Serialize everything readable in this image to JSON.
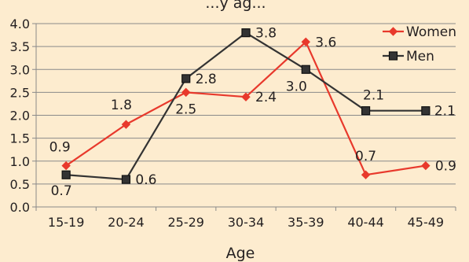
{
  "chart_data": {
    "type": "line",
    "title": "...y ag...",
    "xlabel": "Age",
    "ylabel": "",
    "categories": [
      "15-19",
      "20-24",
      "25-29",
      "30-34",
      "35-39",
      "40-44",
      "45-49"
    ],
    "ylim": [
      0,
      4
    ],
    "yticks": [
      "0.0",
      "0.5",
      "1.0",
      "1.5",
      "2.0",
      "2.5",
      "3.0",
      "3.5",
      "4.0"
    ],
    "grid": true,
    "legend_position": "top-right",
    "series": [
      {
        "name": "Women",
        "color": "#e8392c",
        "marker": "diamond",
        "values": [
          0.9,
          1.8,
          2.5,
          2.4,
          3.6,
          0.7,
          0.9
        ],
        "labels": [
          "0.9",
          "1.8",
          "2.5",
          "2.4",
          "3.6",
          "0.7",
          "0.9"
        ]
      },
      {
        "name": "Men",
        "color": "#333333",
        "marker": "square",
        "values": [
          0.7,
          0.6,
          2.8,
          3.8,
          3.0,
          2.1,
          2.1
        ],
        "labels": [
          "0.7",
          "0.6",
          "2.8",
          "3.8",
          "3.0",
          "2.1",
          "2.1"
        ]
      }
    ]
  }
}
